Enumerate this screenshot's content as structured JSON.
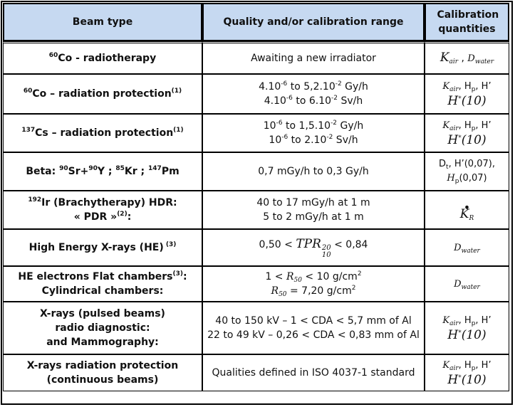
{
  "header": {
    "col1": "Beam type",
    "col2": "Quality and/or calibration range",
    "col3": "Calibration quantities"
  },
  "rows": [
    {
      "beam": {
        "sup": "60",
        "text": "Co - radiotherapy"
      },
      "range": [
        "Awaiting a new irradiator"
      ],
      "quantities": {
        "k": "K",
        "k_sub": "air",
        "sep": " , ",
        "d": "D",
        "d_sub": "water"
      }
    },
    {
      "beam": {
        "sup": "60",
        "text": "Co – radiation protection",
        "note": "(1)"
      },
      "range": [
        {
          "a": "4.10",
          "a_exp": "-6",
          "mid": " to 5,2.10",
          "b_exp": "-2",
          "unit": " Gy/h"
        },
        {
          "a": "4.10",
          "a_exp": "-6",
          "mid": " to 6.10",
          "b_exp": "-2",
          "unit": " Sv/h"
        }
      ],
      "quantities": {
        "line1_k": "K",
        "line1_k_sub": "air",
        "line1_mid": ", H",
        "line1_h_sub": "p",
        "line1_end": ", H’",
        "h": "H",
        "h_sup": "*",
        "h_arg": "(10)"
      }
    },
    {
      "beam": {
        "sup": "137",
        "text": "Cs – radiation protection",
        "note": "(1)"
      },
      "range": [
        {
          "a": "10",
          "a_exp": "-6",
          "mid": " to 1,5.10",
          "b_exp": "-2",
          "unit": " Gy/h"
        },
        {
          "a": "10",
          "a_exp": "-6",
          "mid": " to 2.10",
          "b_exp": "-2",
          "unit": " Sv/h"
        }
      ],
      "quantities": {
        "line1_k": "K",
        "line1_k_sub": "air",
        "line1_mid": ", H",
        "line1_h_sub": "p",
        "line1_end": ", H’",
        "h": "H",
        "h_sup": "*",
        "h_arg": "(10)"
      }
    },
    {
      "beam": {
        "prefix": "Beta: ",
        "sup1": "90",
        "t1": "Sr+",
        "sup2": "90",
        "t2": "Y ; ",
        "sup3": "85",
        "t3": "Kr ; ",
        "sup4": "147",
        "t4": "Pm"
      },
      "range": [
        "0,7 mGy/h to 0,3 Gy/h"
      ],
      "quantities": {
        "l1a": "D",
        "l1a_sub": "t",
        "l1b": ", H’(0,07),",
        "l2a": "H",
        "l2a_sub": "p",
        "l2b": "(0,07)"
      }
    },
    {
      "beam": {
        "sup": "192",
        "line1": "Ir (Brachytherapy)  HDR:",
        "line2": "« PDR »",
        "note": "(2)",
        "line2_end": ":"
      },
      "range": [
        "40 to 17 mGy/h at 1 m",
        "5 to 2 mGy/h at 1 m"
      ],
      "quantities": {
        "k": "K",
        "k_sub": "R"
      }
    },
    {
      "beam": {
        "text": "High Energy X-rays (HE)",
        "note": " (3)"
      },
      "range": {
        "left": "0,50 < ",
        "tpr": "TPR",
        "tpr_sup": "20",
        "tpr_sub": "10",
        "right": " <  0,84"
      },
      "quantities": {
        "d": "D",
        "d_sub": "water"
      }
    },
    {
      "beam": {
        "line1": "HE electrons Flat chambers",
        "note": "(3)",
        "line1_end": ":",
        "line2": "Cylindrical chambers:"
      },
      "range": [
        {
          "left": "1 < ",
          "r": "R",
          "r_sub": "50",
          "right": " < 10 g/cm",
          "unit_sup": "2"
        },
        {
          "left": "",
          "r": "R",
          "r_sub": "50",
          "right": " = 7,20 g/cm",
          "unit_sup": "2"
        }
      ],
      "quantities": {
        "d": "D",
        "d_sub": "water"
      }
    },
    {
      "beam": {
        "lines": [
          "X-rays (pulsed beams)",
          "radio diagnostic:",
          "and Mammography:"
        ]
      },
      "range": [
        "40 to 150 kV – 1 < CDA < 5,7 mm of Al",
        "22 to 49 kV – 0,26 < CDA < 0,83 mm of Al"
      ],
      "quantities": {
        "line1_k": "K",
        "line1_k_sub": "air",
        "line1_mid": ", H",
        "line1_h_sub": "p",
        "line1_end": ", H’",
        "h": "H",
        "h_sup": "*",
        "h_arg": "(10)"
      }
    },
    {
      "beam": {
        "lines": [
          "X-rays radiation protection",
          "(continuous beams)"
        ]
      },
      "range": [
        "Qualities defined in ISO 4037-1 standard"
      ],
      "quantities": {
        "line1_k": "K",
        "line1_k_sub": "air",
        "line1_mid": ", H",
        "line1_h_sub": "p",
        "line1_end": ", H’",
        "h": "H",
        "h_sup": "*",
        "h_arg": "(10)"
      }
    }
  ]
}
